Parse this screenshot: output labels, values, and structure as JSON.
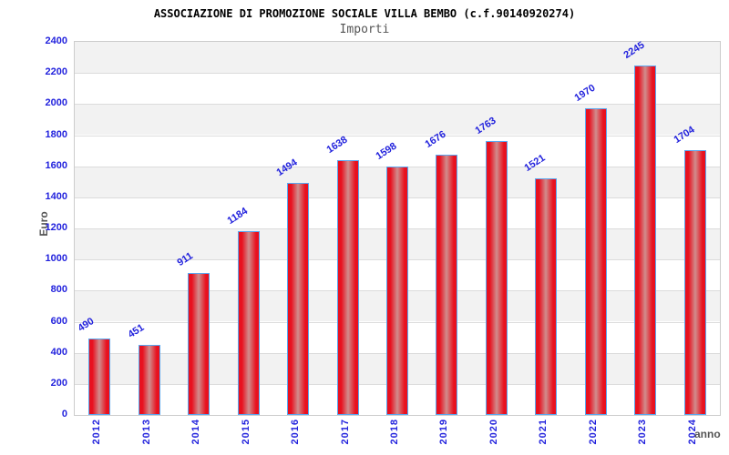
{
  "chart_data": {
    "type": "bar",
    "title": "ASSOCIAZIONE DI PROMOZIONE SOCIALE VILLA BEMBO (c.f.90140920274)",
    "subtitle": "Importi",
    "xlabel": "anno",
    "ylabel": "Euro",
    "categories": [
      "2012",
      "2013",
      "2014",
      "2015",
      "2016",
      "2017",
      "2018",
      "2019",
      "2020",
      "2021",
      "2022",
      "2023",
      "2024"
    ],
    "values": [
      490,
      451,
      911,
      1184,
      1494,
      1638,
      1598,
      1676,
      1763,
      1521,
      1970,
      2245,
      1704
    ],
    "ylim": [
      0,
      2400
    ],
    "ytick_step": 200,
    "ytick_labels": [
      "0",
      "200",
      "400",
      "600",
      "800",
      "1000",
      "1200",
      "1400",
      "1600",
      "1800",
      "2000",
      "2200",
      "2400"
    ],
    "legend_position": "none",
    "grid": "horizontal-bands",
    "colors": {
      "bar_edge_red": "#e8111f",
      "bar_center_highlight": "#d08d8d",
      "bar_border_blue": "#5aa7f0",
      "axis_text_blue": "#2222dd",
      "band_gray": "#f2f2f2",
      "band_white": "#ffffff",
      "gridline_gray": "#dcdcdc",
      "plot_border_gray": "#cccccc",
      "title_black": "#000000",
      "muted_gray_text": "#555555"
    }
  }
}
